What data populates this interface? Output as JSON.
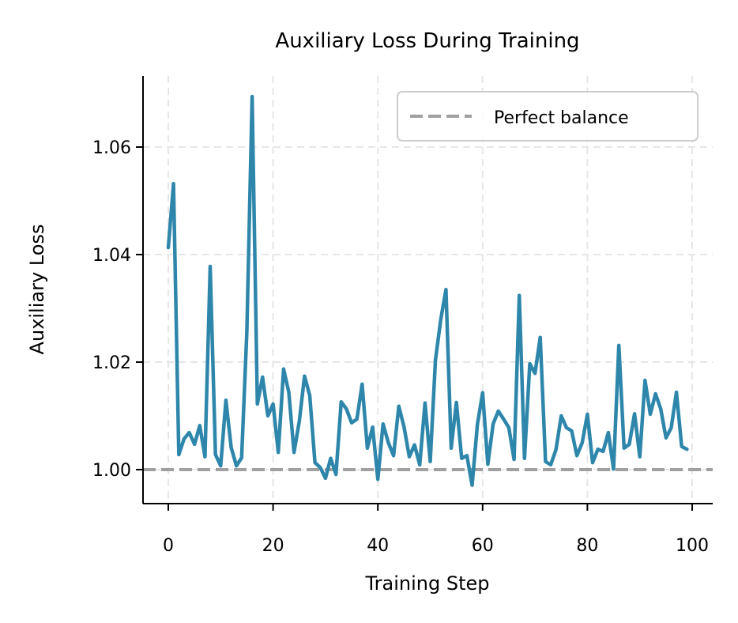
{
  "chart_data": {
    "type": "line",
    "title": "Auxiliary Loss During Training",
    "xlabel": "Training Step",
    "ylabel": "Auxiliary Loss",
    "xlim": [
      -5,
      104
    ],
    "ylim": [
      0.9936,
      1.0731
    ],
    "xticks": [
      0,
      20,
      40,
      60,
      80,
      100
    ],
    "yticks": [
      1.0,
      1.02,
      1.04,
      1.06
    ],
    "ytick_labels": [
      "1.00",
      "1.02",
      "1.04",
      "1.06"
    ],
    "grid": true,
    "legend_position": "upper right",
    "series": [
      {
        "name": "Auxiliary loss",
        "color": "#2E86AB",
        "style": "solid",
        "x": [
          0,
          1,
          2,
          3,
          4,
          5,
          6,
          7,
          8,
          9,
          10,
          11,
          12,
          13,
          14,
          15,
          16,
          17,
          18,
          19,
          20,
          21,
          22,
          23,
          24,
          25,
          26,
          27,
          28,
          29,
          30,
          31,
          32,
          33,
          34,
          35,
          36,
          37,
          38,
          39,
          40,
          41,
          42,
          43,
          44,
          45,
          46,
          47,
          48,
          49,
          50,
          51,
          52,
          53,
          54,
          55,
          56,
          57,
          58,
          59,
          60,
          61,
          62,
          63,
          64,
          65,
          66,
          67,
          68,
          69,
          70,
          71,
          72,
          73,
          74,
          75,
          76,
          77,
          78,
          79,
          80,
          81,
          82,
          83,
          84,
          85,
          86,
          87,
          88,
          89,
          90,
          91,
          92,
          93,
          94,
          95,
          96,
          97,
          98,
          99
        ],
        "values": [
          1.0413,
          1.0532,
          1.0028,
          1.0057,
          1.0069,
          1.0047,
          1.0082,
          1.0024,
          1.0378,
          1.0028,
          1.0007,
          1.0129,
          1.0041,
          1.0007,
          1.0022,
          1.0256,
          1.0694,
          1.0122,
          1.0172,
          1.01,
          1.0122,
          1.0032,
          1.0187,
          1.0144,
          1.0032,
          1.009,
          1.0174,
          1.0138,
          1.0013,
          1.0004,
          0.9984,
          1.0021,
          0.9991,
          1.0126,
          1.0113,
          1.0087,
          1.0094,
          1.0159,
          1.004,
          1.0079,
          0.9982,
          1.0085,
          1.005,
          1.0026,
          1.0118,
          1.0079,
          1.0024,
          1.0046,
          1.0009,
          1.0124,
          1.0015,
          1.0204,
          1.0279,
          1.0335,
          1.004,
          1.0125,
          1.0021,
          1.0026,
          0.9971,
          1.0084,
          1.0143,
          1.001,
          1.0085,
          1.0109,
          1.0094,
          1.0078,
          1.0019,
          1.0324,
          1.0021,
          1.0197,
          1.0179,
          1.0246,
          1.0015,
          1.0009,
          1.0037,
          1.01,
          1.0078,
          1.0072,
          1.0026,
          1.005,
          1.0103,
          1.0013,
          1.0038,
          1.0034,
          1.0069,
          1.0001,
          1.0231,
          1.004,
          1.0047,
          1.0104,
          1.0024,
          1.0166,
          1.0103,
          1.0141,
          1.0113,
          1.0059,
          1.0078,
          1.0144,
          1.0043,
          1.0038
        ]
      },
      {
        "name": "Perfect balance",
        "color": "#A0A0A0",
        "style": "dashed",
        "type": "hline",
        "y": 1.0
      }
    ],
    "legend": [
      "Perfect balance"
    ]
  },
  "colors": {
    "line": "#2E86AB",
    "reference": "#A0A0A0",
    "grid": "#E6E6E6",
    "axis": "#000000",
    "legend_border": "#CCCCCC"
  }
}
